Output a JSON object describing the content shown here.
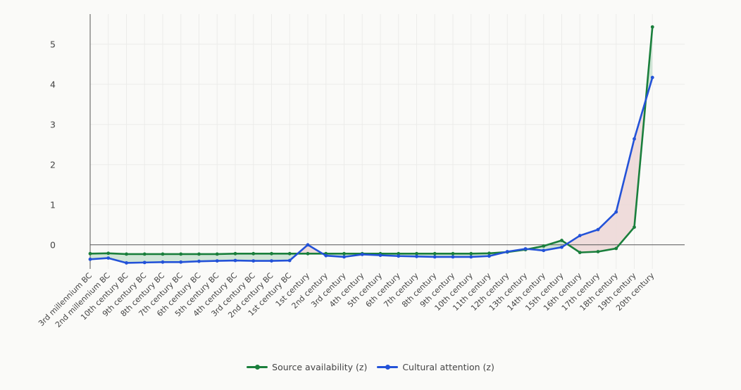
{
  "chart_data": {
    "type": "line",
    "title": "",
    "xlabel": "",
    "ylabel": "",
    "categories": [
      "3rd millennium BC",
      "2nd millennium BC",
      "10th century BC",
      "9th century BC",
      "8th century BC",
      "7th century BC",
      "6th century BC",
      "5th century BC",
      "4th century BC",
      "3rd century BC",
      "2nd century BC",
      "1st century BC",
      "1st century",
      "2nd century",
      "3rd century",
      "4th century",
      "5th century",
      "6th century",
      "7th century",
      "8th century",
      "9th century",
      "10th century",
      "11th century",
      "12th century",
      "13th century",
      "14th century",
      "15th century",
      "16th century",
      "17th century",
      "18th century",
      "19th century",
      "20th century"
    ],
    "ylim": [
      -0.6,
      5.75
    ],
    "yticks": [
      0,
      1,
      2,
      3,
      4,
      5
    ],
    "grid": true,
    "fill_between": true,
    "fill_colors": {
      "a_above_b": "#c8e0d0",
      "b_above_a": "#ecd6d6"
    },
    "legend_position": "bottom-center",
    "series": [
      {
        "name": "Source availability (z)",
        "color": "#1a7f3c",
        "values": [
          -0.22,
          -0.21,
          -0.23,
          -0.23,
          -0.23,
          -0.23,
          -0.23,
          -0.23,
          -0.22,
          -0.22,
          -0.22,
          -0.22,
          -0.22,
          -0.22,
          -0.22,
          -0.22,
          -0.22,
          -0.22,
          -0.22,
          -0.22,
          -0.22,
          -0.22,
          -0.21,
          -0.18,
          -0.12,
          -0.03,
          0.11,
          -0.19,
          -0.17,
          -0.09,
          0.44,
          5.43
        ]
      },
      {
        "name": "Cultural attention (z)",
        "color": "#2352d8",
        "values": [
          -0.36,
          -0.33,
          -0.45,
          -0.44,
          -0.43,
          -0.43,
          -0.41,
          -0.4,
          -0.39,
          -0.4,
          -0.4,
          -0.39,
          0.0,
          -0.27,
          -0.3,
          -0.24,
          -0.26,
          -0.28,
          -0.29,
          -0.3,
          -0.3,
          -0.3,
          -0.28,
          -0.17,
          -0.1,
          -0.14,
          -0.06,
          0.23,
          0.38,
          0.82,
          2.64,
          4.17
        ]
      }
    ]
  }
}
